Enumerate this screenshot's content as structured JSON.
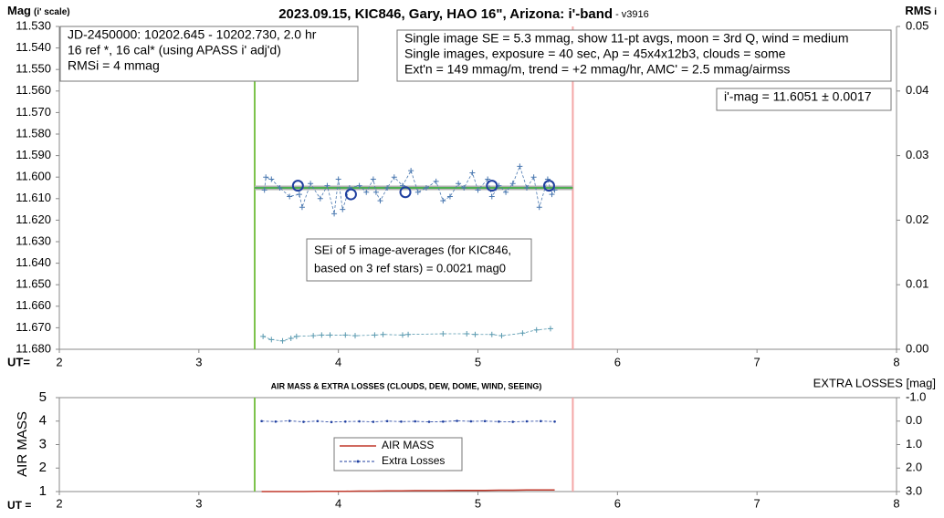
{
  "chart_data": [
    {
      "type": "line",
      "title": "2023.09.15, KIC846, Gary, HAO 16\", Arizona: i'-band",
      "version": " - v3916",
      "ylabel": "Mag",
      "ylabel_sub": "(i' scale)",
      "y2label": "RMS",
      "y2label_sub": "i",
      "xlabel": "UT=",
      "xlim": [
        2,
        8
      ],
      "xticks": [
        2,
        3,
        4,
        5,
        6,
        7,
        8
      ],
      "ylim": [
        11.68,
        11.53
      ],
      "yticks": [
        {
          "value": 11.68,
          "label": "11.680"
        },
        {
          "value": 11.67,
          "label": "11.670"
        },
        {
          "value": 11.66,
          "label": "11.660"
        },
        {
          "value": 11.65,
          "label": "11.650"
        },
        {
          "value": 11.64,
          "label": "11.640"
        },
        {
          "value": 11.63,
          "label": "11.630"
        },
        {
          "value": 11.62,
          "label": "11.620"
        },
        {
          "value": 11.61,
          "label": "11.610"
        },
        {
          "value": 11.6,
          "label": "11.600"
        },
        {
          "value": 11.59,
          "label": "11.590"
        },
        {
          "value": 11.58,
          "label": "11.580"
        },
        {
          "value": 11.57,
          "label": "11.570"
        },
        {
          "value": 11.56,
          "label": "11.560"
        },
        {
          "value": 11.55,
          "label": "11.550"
        },
        {
          "value": 11.54,
          "label": "11.540"
        },
        {
          "value": 11.53,
          "label": "11.530"
        }
      ],
      "y2lim": [
        0,
        0.05
      ],
      "y2ticks": [
        {
          "value": 0,
          "label": "0.00"
        },
        0.01,
        0.02,
        0.03,
        0.04,
        0.05
      ],
      "grid": false,
      "vlines": [
        {
          "x": 3.4,
          "color": "#7cc24a"
        },
        {
          "x": 5.68,
          "color": "#f4a6a6"
        }
      ],
      "fit": {
        "value": 11.605,
        "x": [
          3.4,
          5.68
        ],
        "color": "#4caf50",
        "shadow_color": "#b0b0b0"
      },
      "series": [
        {
          "color": "#4a78b0",
          "line": "dashed",
          "marker": "+",
          "x": [
            3.47,
            3.48,
            3.52,
            3.58,
            3.65,
            3.72,
            3.74,
            3.8,
            3.87,
            3.92,
            3.97,
            4.0,
            4.03,
            4.08,
            4.15,
            4.2,
            4.25,
            4.27,
            4.3,
            4.35,
            4.4,
            4.46,
            4.52,
            4.57,
            4.63,
            4.7,
            4.75,
            4.8,
            4.86,
            4.9,
            4.96,
            5.0,
            5.07,
            5.1,
            5.15,
            5.2,
            5.25,
            5.3,
            5.35,
            5.4,
            5.44,
            5.5,
            5.53,
            5.55
          ],
          "values": [
            11.606,
            11.6,
            11.601,
            11.605,
            11.609,
            11.608,
            11.614,
            11.603,
            11.61,
            11.604,
            11.617,
            11.601,
            11.615,
            11.605,
            11.604,
            11.607,
            11.601,
            11.607,
            11.611,
            11.605,
            11.6,
            11.604,
            11.597,
            11.607,
            11.605,
            11.602,
            11.611,
            11.609,
            11.603,
            11.605,
            11.598,
            11.606,
            11.601,
            11.609,
            11.604,
            11.607,
            11.603,
            11.595,
            11.605,
            11.6,
            11.614,
            11.601,
            11.608,
            11.606
          ]
        },
        {
          "color": "#1f3f9f",
          "line": "none",
          "marker": "o",
          "x": [
            3.71,
            4.09,
            4.48,
            5.1,
            5.51
          ],
          "values": [
            11.604,
            11.608,
            11.607,
            11.604,
            11.604
          ]
        },
        {
          "color": "#5a9ab0",
          "line": "dashed",
          "marker": "+",
          "axis": "y2",
          "x": [
            3.46,
            3.52,
            3.6,
            3.66,
            3.7,
            3.82,
            3.88,
            3.94,
            4.05,
            4.12,
            4.26,
            4.32,
            4.46,
            4.5,
            4.75,
            4.92,
            4.98,
            5.1,
            5.17,
            5.32,
            5.42,
            5.52
          ],
          "values": [
            0.002,
            0.0015,
            0.0013,
            0.0017,
            0.002,
            0.0021,
            0.0022,
            0.0022,
            0.0022,
            0.0021,
            0.0022,
            0.0023,
            0.0022,
            0.0023,
            0.0024,
            0.0024,
            0.0023,
            0.0023,
            0.0021,
            0.0025,
            0.003,
            0.0032
          ]
        }
      ],
      "annotations": [
        {
          "lines": [
            "JD-2450000: 10202.645 - 10202.730, 2.0  hr",
            "16 ref *, 16 cal* (using APASS i' adj'd)",
            "RMSi = 4 mmag"
          ]
        },
        {
          "lines": [
            "Single image SE = 5.3 mmag, show 11-pt avgs, moon = 3rd Q, wind = medium",
            "Single images, exposure = 40 sec, Ap = 45x4x12b3, clouds = some",
            "Ext'n = 149 mmag/m, trend = +2 mmag/hr, AMC' = 2.5 mmag/airmss"
          ]
        },
        {
          "lines": [
            "i'-mag = 11.6051 ± 0.0017"
          ]
        },
        {
          "lines": [
            "SEi of 5 image-averages (for KIC846,",
            "based on 3 ref stars) = 0.0021 mag0"
          ]
        }
      ]
    },
    {
      "type": "line",
      "title": "AIR MASS & EXTRA LOSSES (CLOUDS, DEW, DOME, WIND, SEEING)",
      "ylabel": "AIR MASS",
      "y2label": "EXTRA LOSSES [mag]",
      "xlabel": "UT =",
      "xlim": [
        2,
        8
      ],
      "xticks": [
        2,
        3,
        4,
        5,
        6,
        7,
        8
      ],
      "ylim": [
        1,
        5
      ],
      "yticks": [
        1,
        2,
        3,
        4,
        5
      ],
      "y2lim": [
        3.0,
        -1.0
      ],
      "y2ticks": [
        {
          "value": -1.0,
          "label": "-1.0"
        },
        {
          "value": 0.0,
          "label": "0.0"
        },
        {
          "value": 1.0,
          "label": "1.0"
        },
        {
          "value": 2.0,
          "label": "2.0"
        },
        {
          "value": 3.0,
          "label": "3.0"
        }
      ],
      "grid": false,
      "legend": "center",
      "vlines": [
        {
          "x": 3.4,
          "color": "#7cc24a"
        },
        {
          "x": 5.68,
          "color": "#f4a6a6"
        }
      ],
      "series": [
        {
          "name": "AIR MASS",
          "color": "#c0392b",
          "line": "solid",
          "marker": "none",
          "x": [
            3.45,
            3.55,
            3.65,
            3.75,
            3.85,
            3.95,
            4.05,
            4.15,
            4.25,
            4.35,
            4.45,
            4.55,
            4.65,
            4.75,
            4.85,
            4.95,
            5.05,
            5.15,
            5.25,
            5.35,
            5.45,
            5.55
          ],
          "values": [
            1.0,
            1.0,
            1.0,
            1.0,
            1.01,
            1.01,
            1.01,
            1.02,
            1.02,
            1.03,
            1.03,
            1.04,
            1.04,
            1.04,
            1.05,
            1.05,
            1.05,
            1.06,
            1.06,
            1.07,
            1.07,
            1.07
          ]
        },
        {
          "name": "Extra Losses",
          "color": "#1f3fa0",
          "line": "dashed",
          "marker": ".",
          "axis": "y2",
          "x": [
            3.45,
            3.55,
            3.65,
            3.75,
            3.85,
            3.95,
            4.05,
            4.15,
            4.25,
            4.35,
            4.45,
            4.55,
            4.65,
            4.75,
            4.85,
            4.95,
            5.05,
            5.15,
            5.25,
            5.35,
            5.45,
            5.55
          ],
          "values": [
            0.0,
            0.02,
            -0.01,
            0.03,
            0.0,
            0.04,
            0.02,
            0.01,
            0.03,
            0.0,
            0.02,
            0.01,
            0.03,
            0.02,
            -0.01,
            0.01,
            0.0,
            0.02,
            0.03,
            0.01,
            0.0,
            0.02
          ]
        }
      ]
    }
  ]
}
